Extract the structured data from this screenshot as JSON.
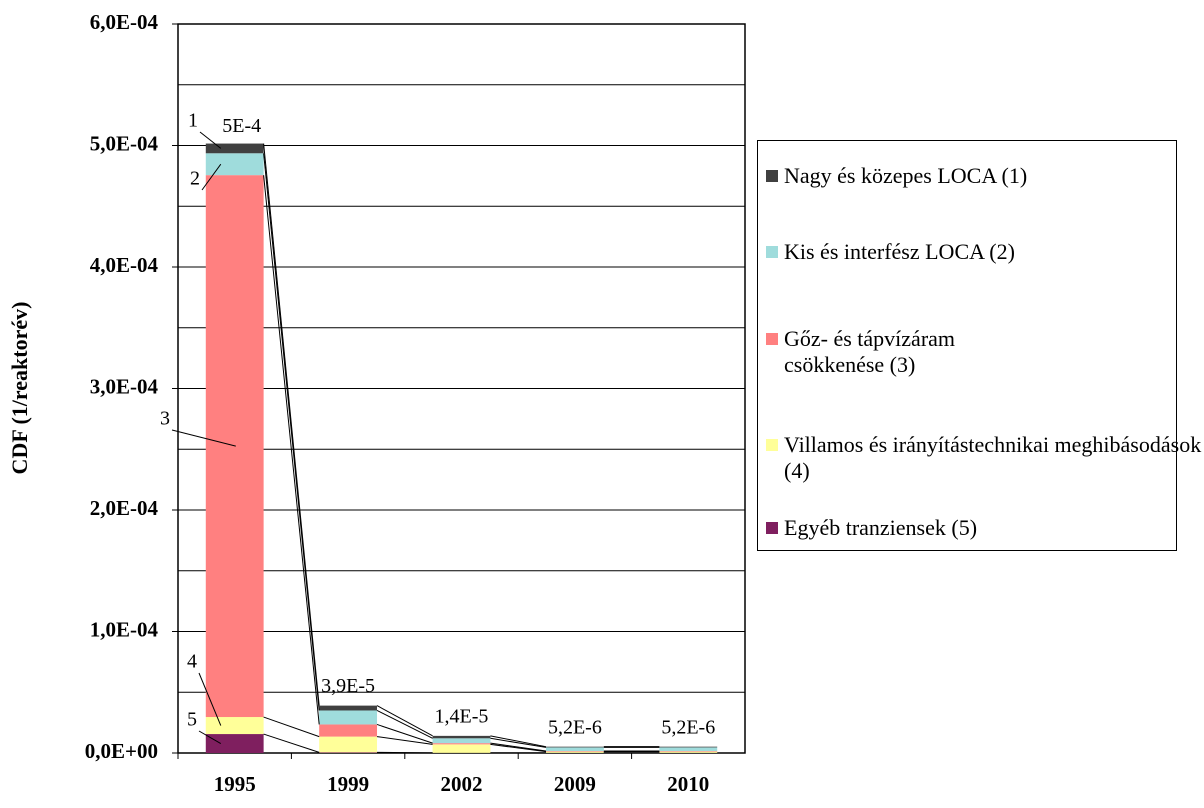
{
  "chart_data": {
    "type": "stacked_bar",
    "y_label": "CDF (1/reaktorév)",
    "categories": [
      "1995",
      "1999",
      "2002",
      "2009",
      "2010"
    ],
    "series": [
      {
        "name": "Nagy és közepes LOCA (1)",
        "color": "#404040",
        "values": [
          8e-06,
          4e-06,
          2e-06,
          6e-07,
          6e-07
        ]
      },
      {
        "name": "Kis és interfész LOCA (2)",
        "color": "#9fdcdc",
        "values": [
          1.8e-05,
          1.15e-05,
          4e-06,
          3e-06,
          3e-06
        ]
      },
      {
        "name": "Gőz- és tápvízáram csökkenése (3)",
        "color": "#ff8080",
        "values": [
          0.000446,
          1e-05,
          1e-06,
          5e-07,
          5e-07
        ]
      },
      {
        "name": "Villamos és irányítástechnikai meghibásodások (4)",
        "color": "#ffff99",
        "values": [
          1.4e-05,
          1.3e-05,
          7e-06,
          1e-06,
          1e-06
        ]
      },
      {
        "name": "Egyéb tranziensek (5)",
        "color": "#7f1f5f",
        "values": [
          1.56e-05,
          5e-07,
          1e-07,
          1e-07,
          1e-07
        ]
      }
    ],
    "segment_labels": [
      "1",
      "2",
      "3",
      "4",
      "5"
    ],
    "totals": [
      0.0005,
      3.9e-05,
      1.4e-05,
      5.2e-06,
      5.2e-06
    ],
    "total_labels": [
      "5E-4",
      "3,9E-5",
      "1,4E-5",
      "5,2E-6",
      "5,2E-6"
    ],
    "ylim": [
      0,
      0.0006
    ],
    "yticks": [
      {
        "value": 0,
        "label": "0,0E+00"
      },
      {
        "value": 0.0001,
        "label": "1,0E-04"
      },
      {
        "value": 0.0002,
        "label": "2,0E-04"
      },
      {
        "value": 0.0003,
        "label": "3,0E-04"
      },
      {
        "value": 0.0004,
        "label": "4,0E-04"
      },
      {
        "value": 0.0005,
        "label": "5,0E-04"
      },
      {
        "value": 0.0006,
        "label": "6,0E-04"
      }
    ],
    "minor_yticks": [
      5e-05,
      0.00015,
      0.00025,
      0.00035,
      0.00045,
      0.00055
    ],
    "grid": true,
    "legend": "right"
  }
}
